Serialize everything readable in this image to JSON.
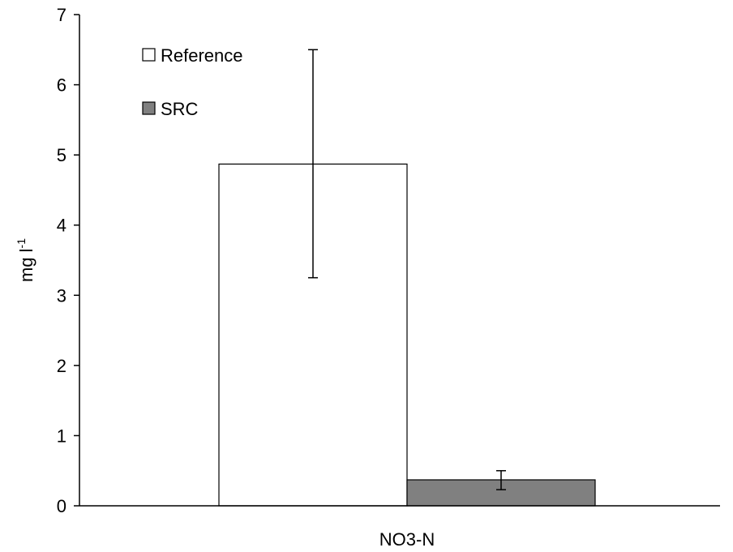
{
  "chart_data": {
    "type": "bar",
    "categories": [
      "NO3-N"
    ],
    "series": [
      {
        "name": "Reference",
        "values": [
          4.87
        ],
        "error_low": [
          3.25
        ],
        "error_high": [
          6.5
        ],
        "color": "#ffffff"
      },
      {
        "name": "SRC",
        "values": [
          0.37
        ],
        "error_low": [
          0.23
        ],
        "error_high": [
          0.5
        ],
        "color": "#808080"
      }
    ],
    "ylabel": {
      "base": "mg l",
      "superscript": "-1"
    },
    "ylim": [
      0,
      7
    ],
    "yticks": [
      "0",
      "1",
      "2",
      "3",
      "4",
      "5",
      "6",
      "7"
    ],
    "legend_position": "top-left",
    "grid": false
  }
}
